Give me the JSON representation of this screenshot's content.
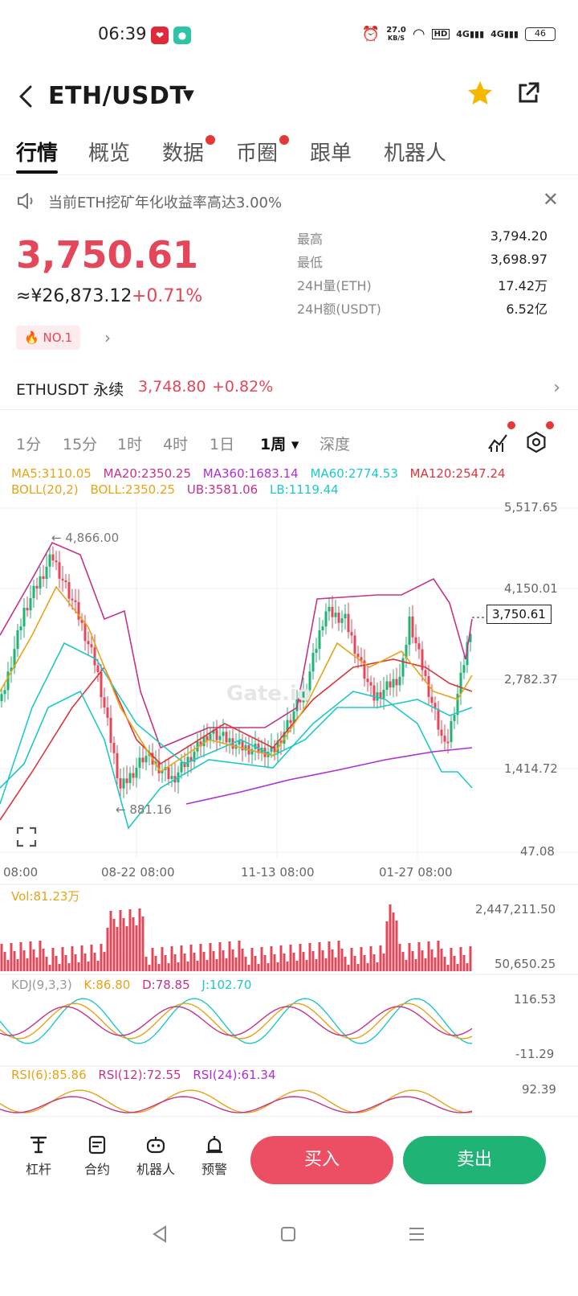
{
  "status": {
    "time": "06:39",
    "speed_value": "27.0",
    "speed_unit": "KB/S",
    "battery": "46",
    "net1": "4G",
    "net2": "4G",
    "hd": "HD"
  },
  "header": {
    "title": "ETH/USDT"
  },
  "tabs": [
    {
      "label": "行情"
    },
    {
      "label": "概览"
    },
    {
      "label": "数据"
    },
    {
      "label": "币圈"
    },
    {
      "label": "跟单"
    },
    {
      "label": "机器人"
    }
  ],
  "notice": {
    "text": "当前ETH挖矿年化收益率高达3.00%"
  },
  "price": {
    "main": "3,750.61",
    "cny": "≈¥26,873.12",
    "change": "+0.71%",
    "rank": "NO.1"
  },
  "stats": [
    {
      "label": "最高",
      "value": "3,794.20"
    },
    {
      "label": "最低",
      "value": "3,698.97"
    },
    {
      "label": "24H量(ETH)",
      "value": "17.42万"
    },
    {
      "label": "24H额(USDT)",
      "value": "6.52亿"
    }
  ],
  "perp": {
    "name": "ETHUSDT 永续",
    "price": "3,748.80",
    "change": "+0.82%"
  },
  "intervals": [
    {
      "label": "1分"
    },
    {
      "label": "15分"
    },
    {
      "label": "1时"
    },
    {
      "label": "4时"
    },
    {
      "label": "1日"
    },
    {
      "label": "1周 ▾"
    },
    {
      "label": "深度"
    }
  ],
  "indicators": {
    "ma5": "MA5:3110.05",
    "ma20": "MA20:2350.25",
    "ma360": "MA360:1683.14",
    "ma60": "MA60:2774.53",
    "ma120": "MA120:2547.24",
    "boll": "BOLL(20,2)",
    "boll_mid": "BOLL:2350.25",
    "ub": "UB:3581.06",
    "lb": "LB:1119.44"
  },
  "chart": {
    "y_ticks": [
      "5,517.65",
      "4,150.01",
      "2,782.37",
      "1,414.72",
      "47.08"
    ],
    "x_ticks": [
      "08:00",
      "08-22 08:00",
      "11-13 08:00",
      "01-27 08:00"
    ],
    "high_marker": "← 4,866.00",
    "low_marker": "← 881.16",
    "current_price_tag": "3,750.61",
    "watermark": "Gate.io",
    "vol_label": "Vol:81.23万",
    "vol_ticks": [
      "2,447,211.50",
      "50,650.25"
    ],
    "kdj_label": "KDJ(9,3,3)",
    "kdj_k": "K:86.80",
    "kdj_d": "D:78.85",
    "kdj_j": "J:102.70",
    "kdj_ticks": [
      "116.53",
      "-11.29"
    ],
    "rsi6": "RSI(6):85.86",
    "rsi12": "RSI(12):72.55",
    "rsi24": "RSI(24):61.34",
    "rsi_tick": "92.39"
  },
  "bottombar": {
    "items": [
      {
        "label": "杠杆"
      },
      {
        "label": "合约"
      },
      {
        "label": "机器人"
      },
      {
        "label": "预警"
      }
    ],
    "buy": "买入",
    "sell": "卖出"
  },
  "colors": {
    "up": "#e5475a",
    "down": "#1fb376",
    "ma5": "#e8a317",
    "ma20": "#c4338a",
    "ma360": "#b02ed1",
    "ma60": "#1fc8c8",
    "ma120": "#d9363e"
  }
}
